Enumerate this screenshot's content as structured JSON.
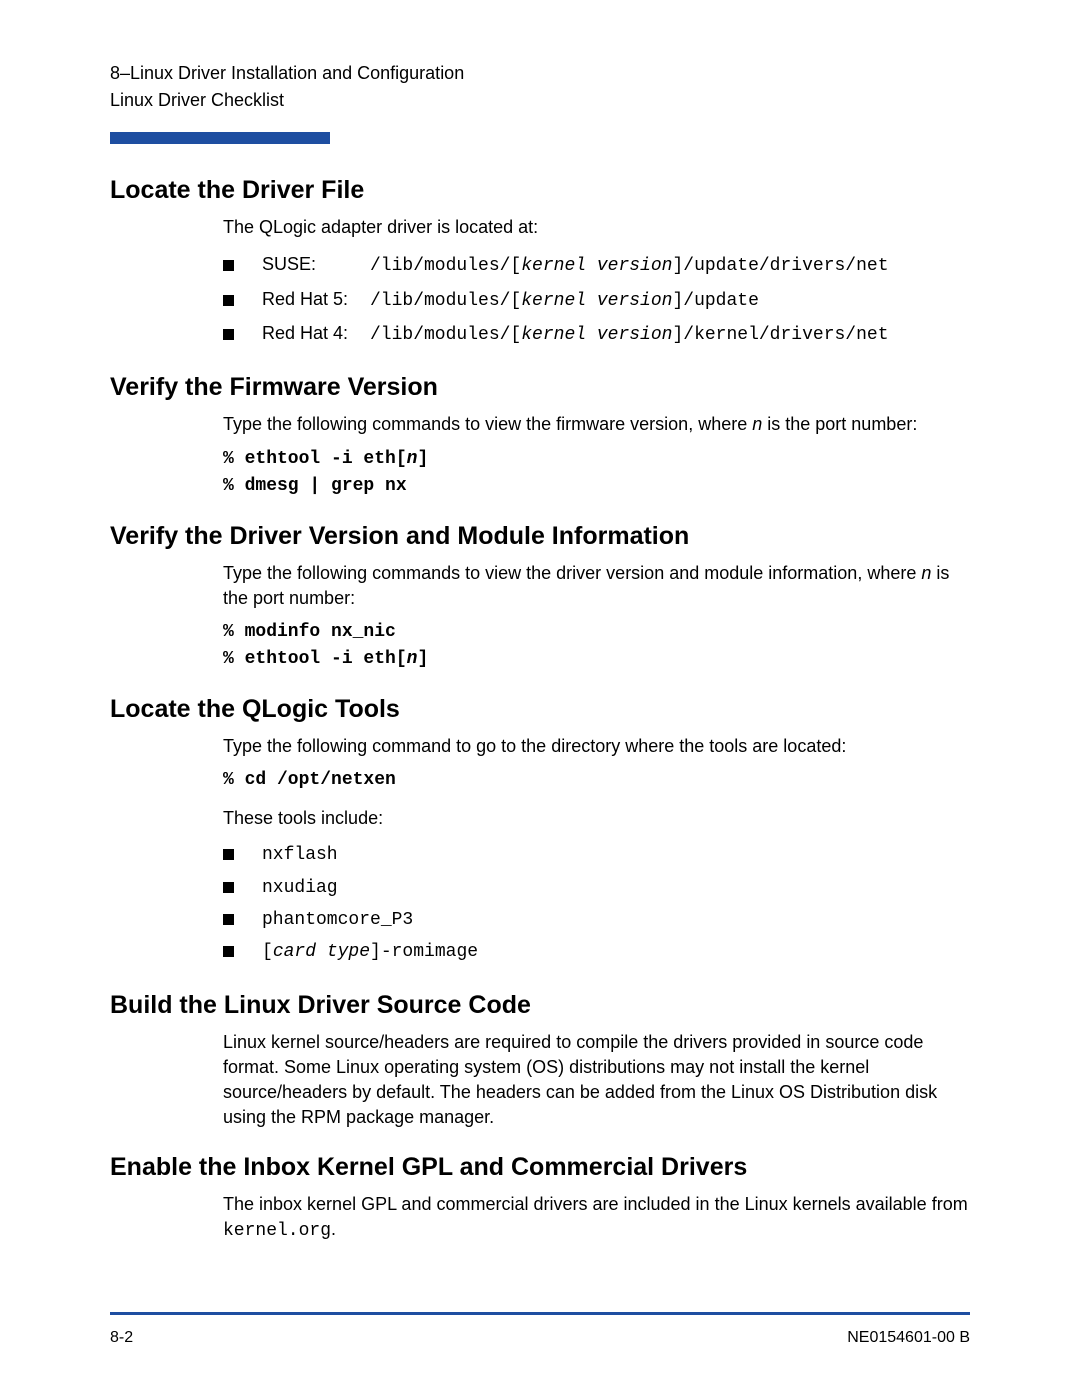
{
  "header": {
    "line1": "8–Linux Driver Installation and Configuration",
    "line2": "Linux Driver Checklist"
  },
  "colors": {
    "accent": "#1e4ea1",
    "text": "#000000",
    "background": "#ffffff"
  },
  "sections": {
    "s1": {
      "heading": "Locate the Driver File",
      "intro": "The QLogic adapter driver is located at:",
      "items": [
        {
          "label": "SUSE:",
          "pre": "/lib/modules/[",
          "ital": "kernel version",
          "post": "]/update/drivers/net"
        },
        {
          "label": "Red Hat 5:",
          "pre": "/lib/modules/[",
          "ital": "kernel version",
          "post": "]/update"
        },
        {
          "label": "Red Hat 4:",
          "pre": "/lib/modules/[",
          "ital": "kernel version",
          "post": "]/kernel/drivers/net"
        }
      ]
    },
    "s2": {
      "heading": "Verify the Firmware Version",
      "intro_pre": "Type the following commands to view the firmware version, where ",
      "intro_ital": "n",
      "intro_post": " is the port number:",
      "code": [
        {
          "pre": "% ethtool -i eth[",
          "ital": "n",
          "post": "]"
        },
        {
          "pre": "% dmesg | grep nx",
          "ital": "",
          "post": ""
        }
      ]
    },
    "s3": {
      "heading": "Verify the Driver Version and Module Information",
      "intro_pre": "Type the following commands to view the driver version and module information, where ",
      "intro_ital": "n",
      "intro_post": " is the port number:",
      "code": [
        {
          "pre": "% modinfo nx_nic",
          "ital": "",
          "post": ""
        },
        {
          "pre": "% ethtool -i eth[",
          "ital": "n",
          "post": "]"
        }
      ]
    },
    "s4": {
      "heading": "Locate the QLogic Tools",
      "intro": "Type the following command to go to the directory where the tools are located:",
      "code": [
        {
          "pre": "% cd /opt/netxen",
          "ital": "",
          "post": ""
        }
      ],
      "text2": "These tools include:",
      "tools": [
        {
          "pre": "nxflash",
          "ital": "",
          "post": ""
        },
        {
          "pre": "nxudiag",
          "ital": "",
          "post": ""
        },
        {
          "pre": "phantomcore_P3",
          "ital": "",
          "post": ""
        },
        {
          "pre": "[",
          "ital": "card type",
          "post": "]-romimage"
        }
      ]
    },
    "s5": {
      "heading": "Build the Linux Driver Source Code",
      "text": "Linux kernel source/headers are required to compile the drivers provided in source code format. Some Linux operating system (OS) distributions may not install the kernel source/headers by default. The headers can be added from the Linux OS Distribution disk using the RPM package manager."
    },
    "s6": {
      "heading": "Enable the Inbox Kernel GPL and Commercial Drivers",
      "text_pre": "The inbox kernel GPL and commercial drivers are included in the Linux kernels available from ",
      "text_mono": "kernel.org",
      "text_post": "."
    }
  },
  "footer": {
    "left": "8-2",
    "right": "NE0154601-00  B"
  }
}
